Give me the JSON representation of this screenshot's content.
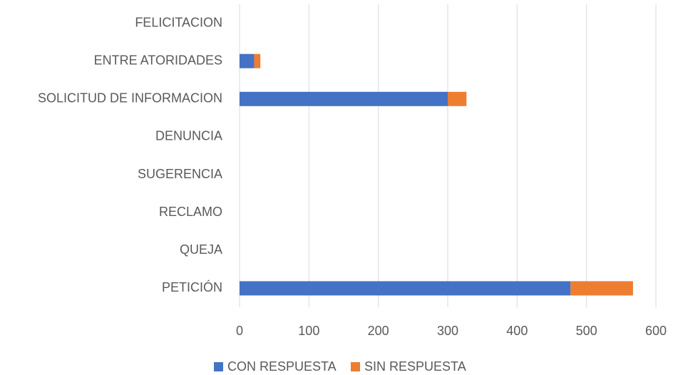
{
  "chart_data": {
    "type": "bar",
    "orientation": "horizontal",
    "stacked": true,
    "categories": [
      "FELICITACION",
      "ENTRE ATORIDADES",
      "SOLICITUD DE INFORMACION",
      "DENUNCIA",
      "SUGERENCIA",
      "RECLAMO",
      "QUEJA",
      "PETICIÓN"
    ],
    "series": [
      {
        "name": "CON RESPUESTA",
        "color": "#4472c4",
        "values": [
          0,
          21,
          300,
          0,
          0,
          0,
          0,
          477
        ]
      },
      {
        "name": "SIN RESPUESTA",
        "color": "#ed7d31",
        "values": [
          0,
          9,
          27,
          0,
          0,
          0,
          0,
          90
        ]
      }
    ],
    "xlim": [
      0,
      600
    ],
    "xticks": [
      0,
      100,
      200,
      300,
      400,
      500,
      600
    ],
    "grid": true,
    "legend": "bottom"
  }
}
